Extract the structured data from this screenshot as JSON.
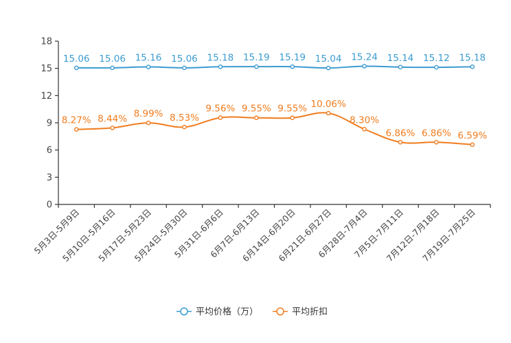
{
  "chart_data": {
    "type": "line",
    "title": "",
    "xlabel": "",
    "ylabel": "",
    "ylim": [
      0,
      18
    ],
    "yticks": [
      0,
      3,
      6,
      9,
      12,
      15,
      18
    ],
    "grid": false,
    "legend_position": "bottom-center",
    "categories": [
      "5月3日-5月9日",
      "5月10日-5月16日",
      "5月17日-5月23日",
      "5月24日-5月30日",
      "5月31日-6月6日",
      "6月7日-6月13日",
      "6月14日-6月20日",
      "6月21日-6月27日",
      "6月28日-7月4日",
      "7月5日-7月11日",
      "7月12日-7月18日",
      "7月19日-7月25日"
    ],
    "series": [
      {
        "name": "平均价格（万）",
        "color": "#3b9bd0",
        "values": [
          15.06,
          15.06,
          15.16,
          15.06,
          15.18,
          15.19,
          15.19,
          15.04,
          15.24,
          15.14,
          15.12,
          15.18
        ],
        "labels": [
          "15.06",
          "15.06",
          "15.16",
          "15.06",
          "15.18",
          "15.19",
          "15.19",
          "15.04",
          "15.24",
          "15.14",
          "15.12",
          "15.18"
        ]
      },
      {
        "name": "平均折扣",
        "color": "#f07c1e",
        "values": [
          8.27,
          8.44,
          8.99,
          8.53,
          9.56,
          9.55,
          9.55,
          10.06,
          8.3,
          6.86,
          6.86,
          6.59
        ],
        "labels": [
          "8.27%",
          "8.44%",
          "8.99%",
          "8.53%",
          "9.56%",
          "9.55%",
          "9.55%",
          "10.06%",
          "8.30%",
          "6.86%",
          "6.86%",
          "6.59%"
        ]
      }
    ]
  }
}
